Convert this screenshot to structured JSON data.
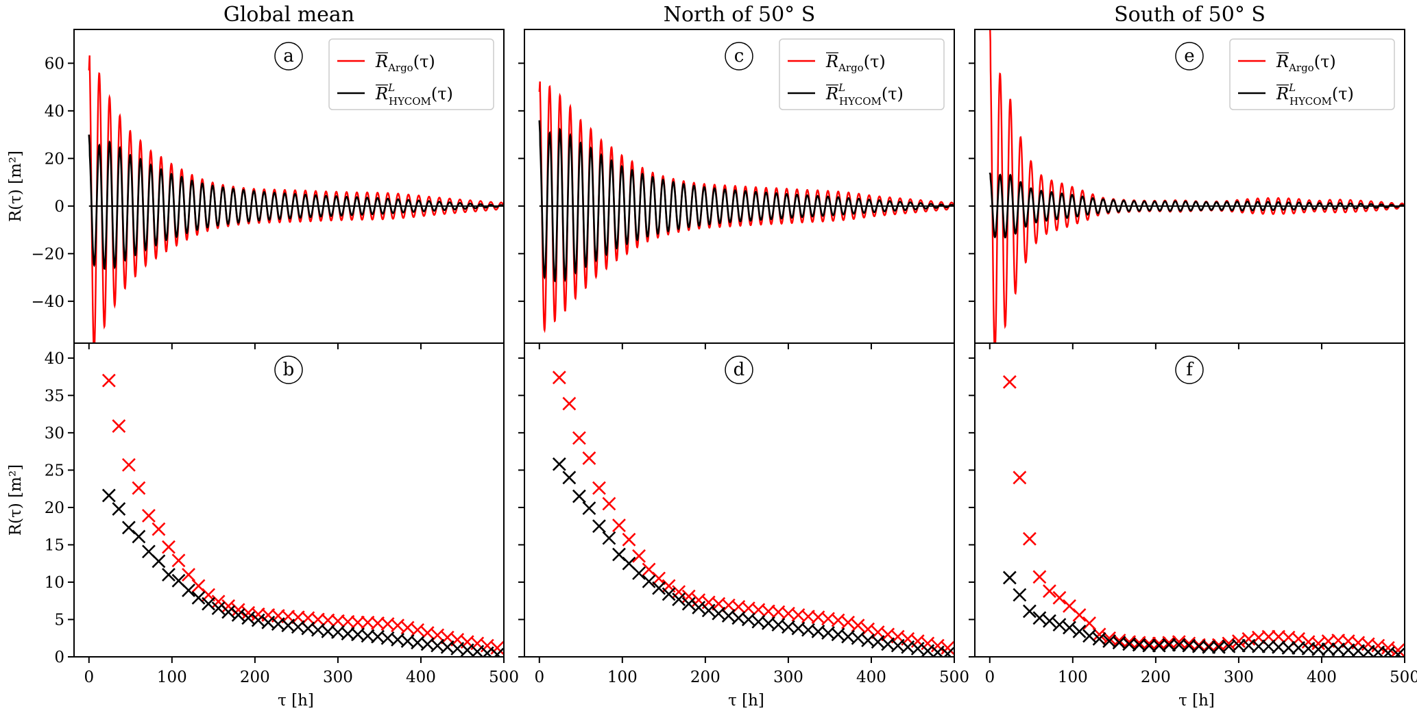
{
  "figure": {
    "titles": [
      "Global mean",
      "North of 50° S",
      "South of 50° S"
    ],
    "ylabel": "R(τ) [m²]",
    "xlabel": "τ [h]"
  },
  "legend": {
    "entries": [
      {
        "label_main": "R",
        "label_sub": "Argo",
        "label_sup": "",
        "label_tail": "(τ)",
        "color": "#ff0000"
      },
      {
        "label_main": "R",
        "label_sub": "HYCOM",
        "label_sup": "L",
        "label_tail": "(τ)",
        "color": "#000000"
      }
    ]
  },
  "colors": {
    "argo": "#ff0000",
    "hycom": "#000000",
    "axis": "#000000",
    "legend_border": "#cccccc"
  },
  "chart_data": [
    {
      "panel": "a",
      "column": 0,
      "row": "top",
      "type": "line",
      "title": "Global mean",
      "xlabel": "",
      "ylabel": "R(τ) [m²]",
      "xlim": [
        -18,
        500
      ],
      "ylim": [
        -57.6,
        74.2
      ],
      "xticks": [
        0,
        100,
        200,
        300,
        400,
        500
      ],
      "xtick_labels_shown": false,
      "yticks": [
        -40,
        -20,
        0,
        20,
        40,
        60
      ],
      "ytick_labels": [
        "−40",
        "−20",
        "0",
        "20",
        "40",
        "60"
      ],
      "grid": false,
      "legend_position": "top-right",
      "zero_line": true,
      "oscillation_period_h": 12.42,
      "series": [
        {
          "name": "Argo",
          "initial_value": 57,
          "first_peak": 66,
          "first_trough": -46,
          "envelope_ref": "b.Argo"
        },
        {
          "name": "HYCOM",
          "initial_value": 30,
          "first_peak": 24,
          "first_trough": -24,
          "envelope_ref": "b.HYCOM"
        }
      ]
    },
    {
      "panel": "b",
      "column": 0,
      "row": "bottom",
      "type": "scatter",
      "marker": "x",
      "xlabel": "τ [h]",
      "ylabel": "R(τ) [m²]",
      "xlim": [
        -18,
        500
      ],
      "ylim": [
        0,
        42
      ],
      "xticks": [
        0,
        100,
        200,
        300,
        400,
        500
      ],
      "xtick_labels": [
        "0",
        "100",
        "200",
        "300",
        "400",
        "500"
      ],
      "yticks": [
        0,
        5,
        10,
        15,
        20,
        25,
        30,
        35,
        40
      ],
      "ytick_labels": [
        "0",
        "5",
        "10",
        "15",
        "20",
        "25",
        "30",
        "35",
        "40"
      ],
      "grid": false,
      "x": [
        24,
        36,
        48,
        60,
        72,
        84,
        96,
        108,
        120,
        132,
        144,
        156,
        168,
        180,
        192,
        204,
        216,
        228,
        240,
        252,
        264,
        276,
        288,
        300,
        312,
        324,
        336,
        348,
        360,
        372,
        384,
        396,
        408,
        420,
        432,
        444,
        456,
        468,
        480,
        492
      ],
      "series": [
        {
          "name": "Argo",
          "values": [
            37.0,
            30.9,
            25.7,
            22.6,
            18.9,
            17.1,
            14.7,
            12.9,
            11.0,
            9.5,
            8.3,
            7.4,
            6.8,
            6.3,
            5.9,
            5.7,
            5.6,
            5.5,
            5.4,
            5.3,
            5.2,
            5.0,
            4.9,
            4.8,
            4.7,
            4.6,
            4.6,
            4.5,
            4.4,
            4.2,
            3.9,
            3.6,
            3.2,
            2.9,
            2.6,
            2.3,
            2.0,
            1.8,
            1.5,
            1.2
          ]
        },
        {
          "name": "HYCOM",
          "values": [
            21.6,
            19.8,
            17.3,
            16.1,
            14.1,
            12.8,
            11.0,
            10.2,
            8.9,
            7.9,
            7.1,
            6.5,
            6.0,
            5.6,
            5.2,
            4.9,
            4.6,
            4.4,
            4.2,
            4.0,
            3.8,
            3.6,
            3.4,
            3.3,
            3.1,
            3.0,
            2.8,
            2.7,
            2.5,
            2.3,
            2.1,
            1.9,
            1.7,
            1.5,
            1.3,
            1.1,
            0.9,
            0.7,
            0.5,
            0.3
          ]
        }
      ]
    },
    {
      "panel": "c",
      "column": 1,
      "row": "top",
      "type": "line",
      "title": "North of 50° S",
      "xlim": [
        -18,
        500
      ],
      "ylim": [
        -57.6,
        74.2
      ],
      "xticks": [
        0,
        100,
        200,
        300,
        400,
        500
      ],
      "xtick_labels_shown": false,
      "yticks": [
        -40,
        -20,
        0,
        20,
        40,
        60
      ],
      "ytick_labels_shown": false,
      "grid": false,
      "legend_position": "top-right",
      "zero_line": true,
      "oscillation_period_h": 12.42,
      "series": [
        {
          "name": "Argo",
          "initial_value": 48,
          "first_peak": 54,
          "first_trough": -42,
          "envelope_ref": "d.Argo"
        },
        {
          "name": "HYCOM",
          "initial_value": 36,
          "first_peak": 25,
          "first_trough": -29,
          "envelope_ref": "d.HYCOM"
        }
      ]
    },
    {
      "panel": "d",
      "column": 1,
      "row": "bottom",
      "type": "scatter",
      "marker": "x",
      "xlabel": "τ [h]",
      "xlim": [
        -18,
        500
      ],
      "ylim": [
        0,
        42
      ],
      "xticks": [
        0,
        100,
        200,
        300,
        400,
        500
      ],
      "xtick_labels": [
        "0",
        "100",
        "200",
        "300",
        "400",
        "500"
      ],
      "yticks": [
        0,
        5,
        10,
        15,
        20,
        25,
        30,
        35,
        40
      ],
      "ytick_labels_shown": false,
      "grid": false,
      "x": [
        24,
        36,
        48,
        60,
        72,
        84,
        96,
        108,
        120,
        132,
        144,
        156,
        168,
        180,
        192,
        204,
        216,
        228,
        240,
        252,
        264,
        276,
        288,
        300,
        312,
        324,
        336,
        348,
        360,
        372,
        384,
        396,
        408,
        420,
        432,
        444,
        456,
        468,
        480,
        492
      ],
      "series": [
        {
          "name": "Argo",
          "values": [
            37.4,
            33.9,
            29.3,
            26.6,
            22.6,
            20.5,
            17.6,
            15.7,
            13.5,
            11.7,
            10.5,
            9.5,
            8.7,
            8.1,
            7.6,
            7.3,
            7.1,
            6.9,
            6.7,
            6.5,
            6.3,
            6.1,
            6.0,
            5.8,
            5.6,
            5.4,
            5.3,
            5.1,
            4.9,
            4.6,
            4.2,
            3.7,
            3.3,
            3.0,
            2.7,
            2.4,
            2.1,
            1.8,
            1.5,
            1.2
          ]
        },
        {
          "name": "HYCOM",
          "values": [
            25.8,
            24.0,
            21.5,
            19.9,
            17.5,
            15.9,
            13.7,
            12.5,
            11.2,
            10.1,
            9.2,
            8.4,
            7.7,
            7.1,
            6.6,
            6.2,
            5.8,
            5.5,
            5.2,
            5.0,
            4.7,
            4.5,
            4.3,
            4.0,
            3.8,
            3.6,
            3.4,
            3.2,
            3.0,
            2.7,
            2.5,
            2.2,
            2.0,
            1.7,
            1.5,
            1.3,
            1.1,
            0.8,
            0.6,
            0.4
          ]
        }
      ]
    },
    {
      "panel": "e",
      "column": 2,
      "row": "top",
      "type": "line",
      "title": "South of 50° S",
      "xlim": [
        -18,
        500
      ],
      "ylim": [
        -57.6,
        74.2
      ],
      "xticks": [
        0,
        100,
        200,
        300,
        400,
        500
      ],
      "xtick_labels_shown": false,
      "yticks": [
        -40,
        -20,
        0,
        20,
        40,
        60
      ],
      "ytick_labels_shown": false,
      "grid": false,
      "legend_position": "top-right",
      "zero_line": true,
      "oscillation_period_h": 12.42,
      "series": [
        {
          "name": "Argo",
          "initial_value": 80,
          "first_peak": 66,
          "first_trough": -56,
          "envelope_ref": "f.Argo"
        },
        {
          "name": "HYCOM",
          "initial_value": 14,
          "first_peak": 13,
          "first_trough": -13,
          "envelope_ref": "f.HYCOM"
        }
      ]
    },
    {
      "panel": "f",
      "column": 2,
      "row": "bottom",
      "type": "scatter",
      "marker": "x",
      "xlabel": "τ [h]",
      "xlim": [
        -18,
        500
      ],
      "ylim": [
        0,
        42
      ],
      "xticks": [
        0,
        100,
        200,
        300,
        400,
        500
      ],
      "xtick_labels": [
        "0",
        "100",
        "200",
        "300",
        "400",
        "500"
      ],
      "yticks": [
        0,
        5,
        10,
        15,
        20,
        25,
        30,
        35,
        40
      ],
      "ytick_labels_shown": false,
      "grid": false,
      "x": [
        24,
        36,
        48,
        60,
        72,
        84,
        96,
        108,
        120,
        132,
        144,
        156,
        168,
        180,
        192,
        204,
        216,
        228,
        240,
        252,
        264,
        276,
        288,
        300,
        312,
        324,
        336,
        348,
        360,
        372,
        384,
        396,
        408,
        420,
        432,
        444,
        456,
        468,
        480,
        492
      ],
      "series": [
        {
          "name": "Argo",
          "values": [
            36.8,
            24.0,
            15.8,
            10.7,
            8.8,
            7.9,
            6.8,
            5.6,
            4.5,
            3.0,
            2.5,
            2.2,
            2.0,
            1.9,
            1.8,
            1.8,
            1.9,
            2.0,
            1.8,
            1.6,
            1.5,
            1.6,
            1.8,
            2.1,
            2.4,
            2.6,
            2.7,
            2.7,
            2.6,
            2.4,
            2.0,
            1.8,
            2.1,
            2.2,
            2.1,
            1.9,
            1.7,
            1.5,
            1.2,
            0.9
          ]
        },
        {
          "name": "HYCOM",
          "values": [
            10.6,
            8.3,
            6.1,
            5.2,
            4.8,
            4.3,
            3.9,
            3.4,
            2.8,
            2.4,
            2.1,
            1.9,
            1.7,
            1.6,
            1.5,
            1.5,
            1.6,
            1.6,
            1.5,
            1.4,
            1.3,
            1.3,
            1.4,
            1.5,
            1.5,
            1.4,
            1.4,
            1.3,
            1.2,
            1.2,
            1.1,
            1.0,
            1.0,
            1.0,
            0.9,
            0.8,
            0.7,
            0.6,
            0.5,
            0.3
          ]
        }
      ]
    }
  ]
}
